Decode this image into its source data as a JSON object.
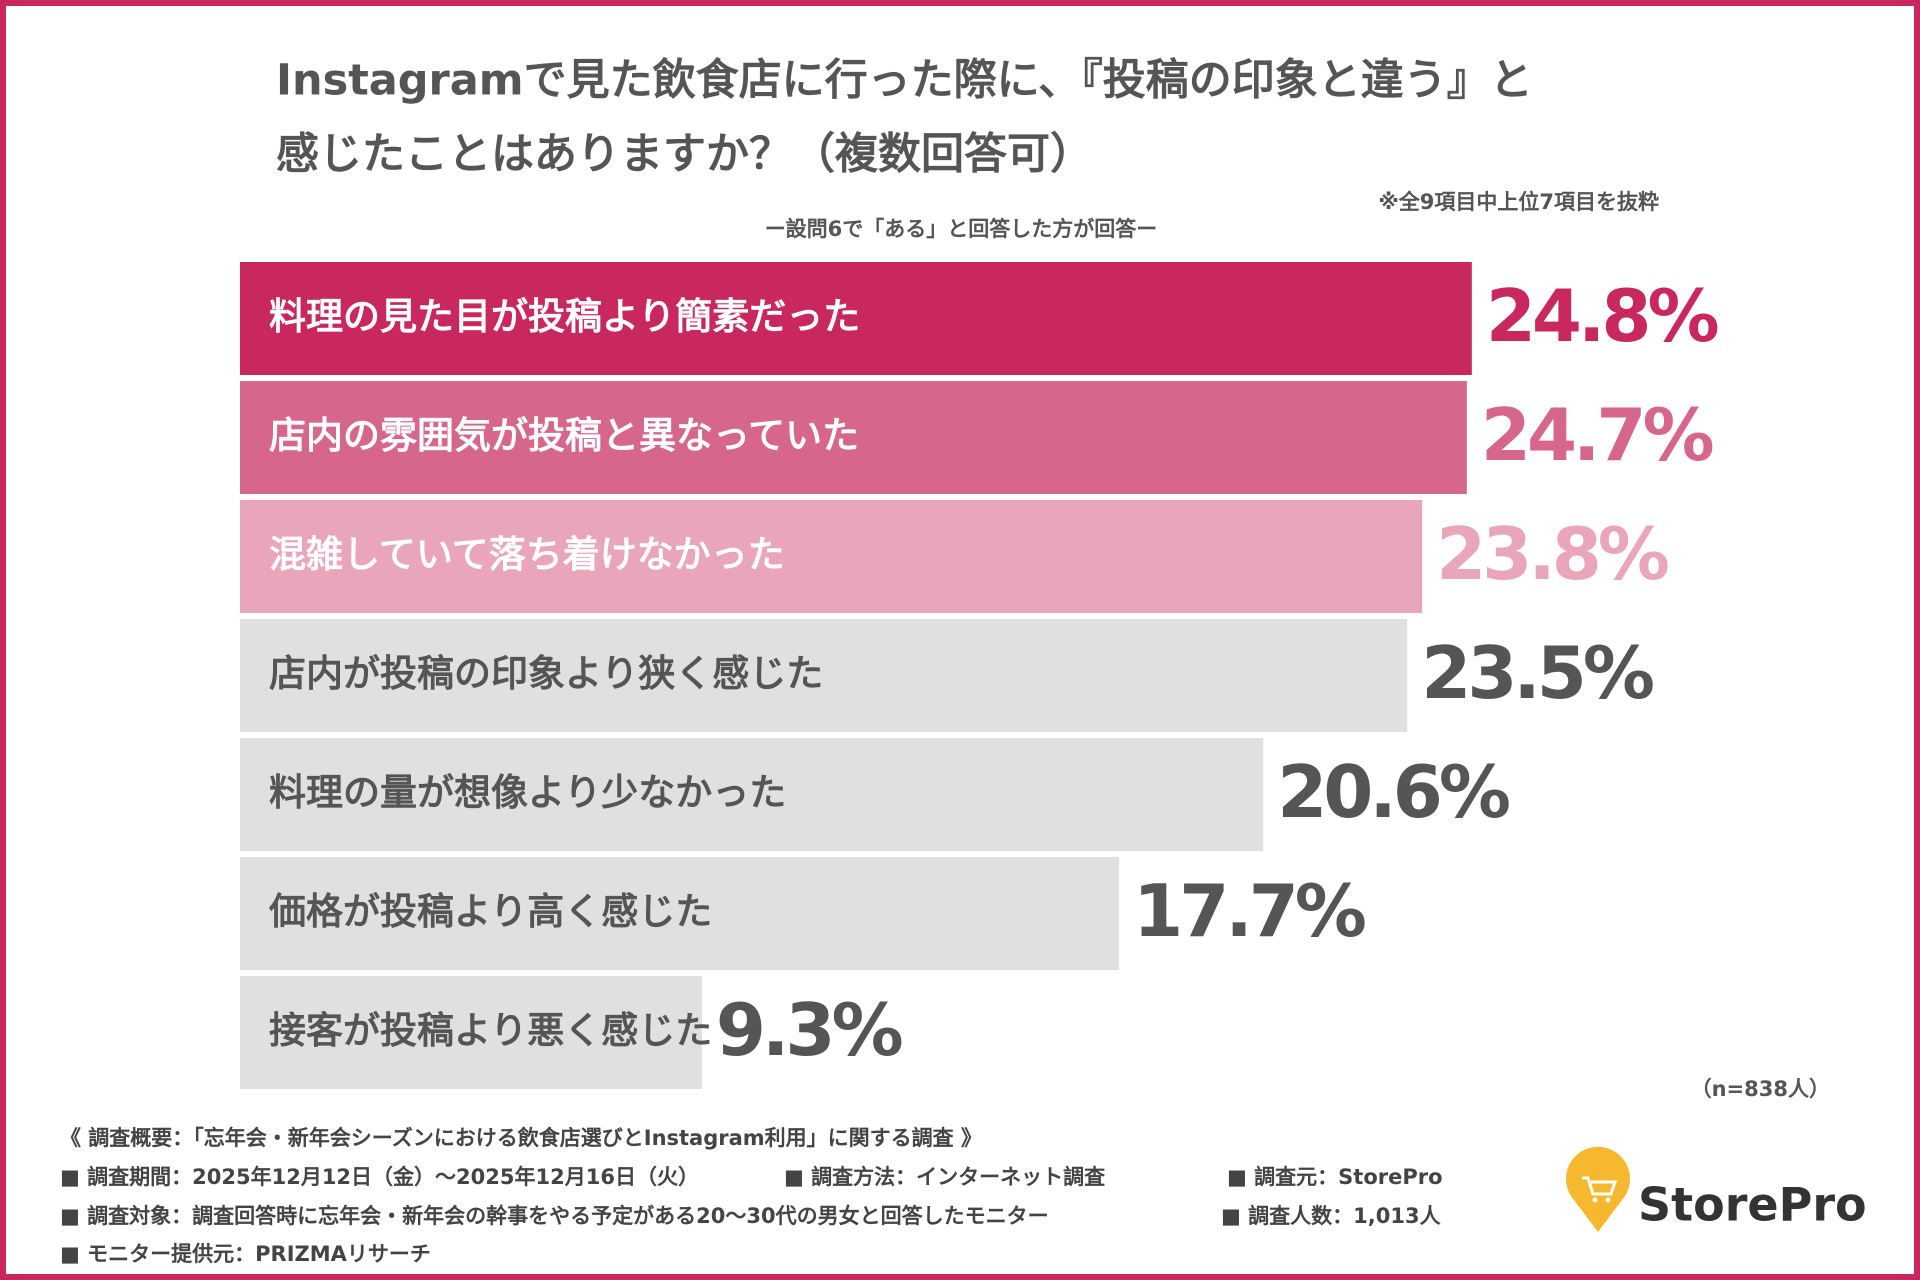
{
  "chart_data": {
    "type": "bar",
    "orientation": "horizontal",
    "title": [
      "Instagramで見た飲食店に行った際に、『投稿の印象と違う』と",
      "感じたことはありますか？（複数回答可）"
    ],
    "subtitle": "ー設問6で「ある」と回答した方が回答ー",
    "note": "※全9項目中上位7項目を抜粋",
    "sample": "（n=838人）",
    "categories": [
      "料理の見た目が投稿より簡素だった",
      "店内の雰囲気が投稿と異なっていた",
      "混雑していて落ち着けなかった",
      "店内が投稿の印象より狭く感じた",
      "料理の量が想像より少なかった",
      "価格が投稿より高く感じた",
      "接客が投稿より悪く感じた"
    ],
    "values": [
      24.8,
      24.7,
      23.8,
      23.5,
      20.6,
      17.7,
      9.3
    ],
    "value_labels": [
      "24.8%",
      "24.7%",
      "23.8%",
      "23.5%",
      "20.6%",
      "17.7%",
      "9.3%"
    ],
    "colors": [
      "#c9285e",
      "#d7668b",
      "#e9a5ba",
      "#e0e0e0",
      "#e0e0e0",
      "#e0e0e0",
      "#e0e0e0"
    ],
    "text_colors": [
      "#ffffff",
      "#ffffff",
      "#ffffff",
      "#555555",
      "#555555",
      "#555555",
      "#555555"
    ],
    "value_label_colors": [
      "#c9285e",
      "#d7668b",
      "#e9a5ba",
      "#555555",
      "#555555",
      "#555555",
      "#555555"
    ]
  },
  "footer": {
    "heading": "《 調査概要：「忘年会・新年会シーズンにおける飲食店選びとInstagram利用」に関する調査 》",
    "items": [
      "■ 調査期間：2025年12月12日（金）〜2025年12月16日（火）",
      "■ 調査方法：インターネット調査",
      "■ 調査元：StorePro",
      "■ 調査対象：調査回答時に忘年会・新年会の幹事をやる予定がある20〜30代の男女と回答したモニター",
      "■ 調査人数：1,013人",
      "■ モニター提供元：PRIZMAリサーチ"
    ]
  },
  "logo": "StorePro"
}
